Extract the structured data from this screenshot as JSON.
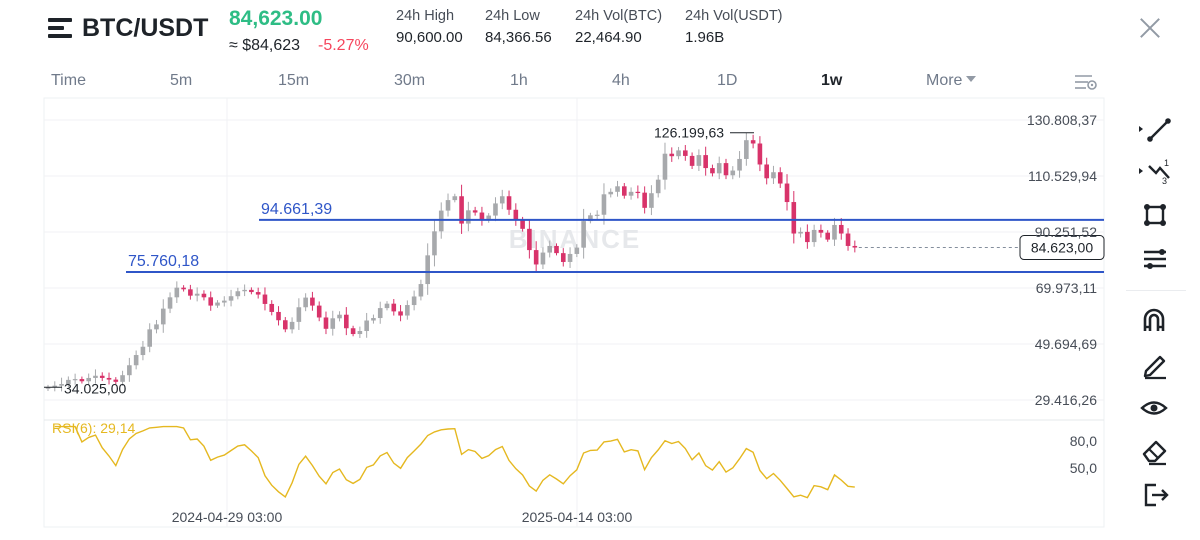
{
  "header": {
    "pair": "BTC/USDT",
    "last_price": "84,623.00",
    "approx_price": "≈ $84,623",
    "change_pct": "-5.27%",
    "stats": [
      {
        "label": "24h High",
        "value": "90,600.00"
      },
      {
        "label": "24h Low",
        "value": "84,366.56"
      },
      {
        "label": "24h Vol(BTC)",
        "value": "22,464.90"
      },
      {
        "label": "24h Vol(USDT)",
        "value": "1.96B"
      }
    ]
  },
  "intervals": {
    "items": [
      "Time",
      "5m",
      "15m",
      "30m",
      "1h",
      "4h",
      "1D",
      "1w"
    ],
    "active": "1w",
    "more_label": "More"
  },
  "toolbar": {
    "icons": [
      "trend-line-icon",
      "multi-point-line-icon",
      "rectangle-shape-icon",
      "fib-levels-icon",
      "magnet-icon",
      "pencil-icon",
      "eye-icon",
      "eraser-icon",
      "exit-drawing-icon"
    ]
  },
  "colors": {
    "up": "#a7a9ac",
    "down": "#d8336a",
    "level_line": "#2f56c8",
    "rsi": "#e5b820",
    "price_green": "#2ebd85",
    "change_red": "#f6465d"
  },
  "chart_data": {
    "type": "candlestick",
    "watermark": "BINANCE",
    "y_axis_labels": [
      "130.808,37",
      "110.529,94",
      "90.251,52",
      "69.973,11",
      "49.694,69",
      "29.416,26"
    ],
    "y_axis_values": [
      130808.37,
      110529.94,
      90251.52,
      69973.11,
      49694.69,
      29416.26
    ],
    "x_axis_labels": [
      "2024-04-29 03:00",
      "2025-04-14 03:00"
    ],
    "current_price_label": "84.623,00",
    "current_price": 84623.0,
    "high_marker_label": "126.199,63",
    "high_marker_value": 126199.63,
    "low_marker_label": "34.025,00",
    "low_marker_value": 34025.0,
    "levels": [
      {
        "label": "94.661,39",
        "value": 94661.39
      },
      {
        "label": "75.760,18",
        "value": 75760.18
      }
    ],
    "candles_close": [
      34000,
      34600,
      35200,
      36700,
      37000,
      36200,
      37400,
      38200,
      37400,
      36800,
      36000,
      38400,
      42000,
      45700,
      48700,
      55000,
      56800,
      62500,
      66600,
      70100,
      69500,
      67200,
      67900,
      66600,
      63600,
      64700,
      65400,
      67000,
      68800,
      69300,
      68500,
      67600,
      64200,
      61300,
      58300,
      55000,
      57700,
      63000,
      66500,
      63600,
      59300,
      55200,
      59000,
      60300,
      55400,
      53300,
      54400,
      58200,
      59100,
      62700,
      64300,
      61500,
      60000,
      63800,
      66900,
      71400,
      81800,
      90500,
      98000,
      101800,
      103200,
      93300,
      98100,
      97300,
      94400,
      96200,
      100600,
      103200,
      98300,
      94600,
      91400,
      83700,
      78500,
      82800,
      85200,
      82600,
      79400,
      82300,
      84600,
      94200,
      96300,
      96500,
      103900,
      104800,
      106800,
      103400,
      104800,
      104500,
      99000,
      104300,
      109200,
      118600,
      117700,
      119800,
      117800,
      114200,
      118100,
      113400,
      111500,
      115200,
      110800,
      112500,
      116700,
      123500,
      122300,
      114700,
      109700,
      111900,
      107800,
      101100,
      89700,
      90300,
      86600,
      91000,
      90000,
      87500,
      92800,
      89700,
      85200,
      84623
    ],
    "rsi": {
      "label": "RSI(6): 29,14",
      "period": 6,
      "last_value": 29.14,
      "axis_labels": [
        "80,0",
        "50,0"
      ],
      "axis_values": [
        80,
        50
      ]
    }
  }
}
